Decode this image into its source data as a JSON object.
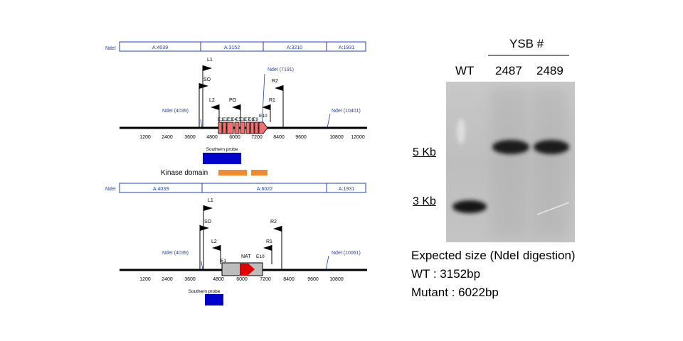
{
  "wt_map": {
    "ndei_site": "NdeI",
    "fragments": [
      "A:4039",
      "A:3152",
      "A:3210",
      "A:1931"
    ],
    "primer_labels": [
      "L1",
      "SO",
      "L2",
      "PO",
      "R2",
      "R1"
    ],
    "site_labels": [
      "NdeI (4039)",
      "NdeI (7191)",
      "NdeI (10401)"
    ],
    "exon_labels": [
      "E1",
      "E2",
      "E3",
      "E4",
      "E5",
      "E6",
      "E7",
      "E8",
      "E9",
      "E10"
    ],
    "axis_ticks": [
      "1200",
      "2400",
      "3600",
      "4800",
      "6000",
      "7200",
      "8400",
      "9600",
      "10800",
      "12000"
    ],
    "probe_label": "Southern probe",
    "kinase_label": "Kinase domain"
  },
  "mut_map": {
    "ndei_site": "NdeI",
    "fragments": [
      "A:4039",
      "A:6022",
      "A:1931"
    ],
    "primer_labels": [
      "L1",
      "SO",
      "L2",
      "R2",
      "R1"
    ],
    "site_labels": [
      "NdeI (4039)",
      "NdeI (10061)"
    ],
    "exon_labels": [
      "E1",
      "E10"
    ],
    "cassette_label": "NAT",
    "axis_ticks": [
      "1200",
      "2400",
      "3600",
      "4800",
      "6000",
      "7200",
      "8400",
      "9600",
      "10800"
    ],
    "probe_label": "Southern probe"
  },
  "blot": {
    "group_label": "YSB #",
    "lanes": [
      "WT",
      "2487",
      "2489"
    ],
    "markers": [
      "5 Kb",
      "3 Kb"
    ]
  },
  "expected": {
    "title": "Expected size (NdeI digestion)",
    "wt": "WT : 3152bp",
    "mutant": "Mutant : 6022bp"
  },
  "colors": {
    "map_text": "#1f3fbf",
    "probe": "#0000cc",
    "kinase": "#f08a30",
    "exon": "#f07070",
    "cassette": "#bdbdbd",
    "nat_arrow": "#e00000"
  }
}
